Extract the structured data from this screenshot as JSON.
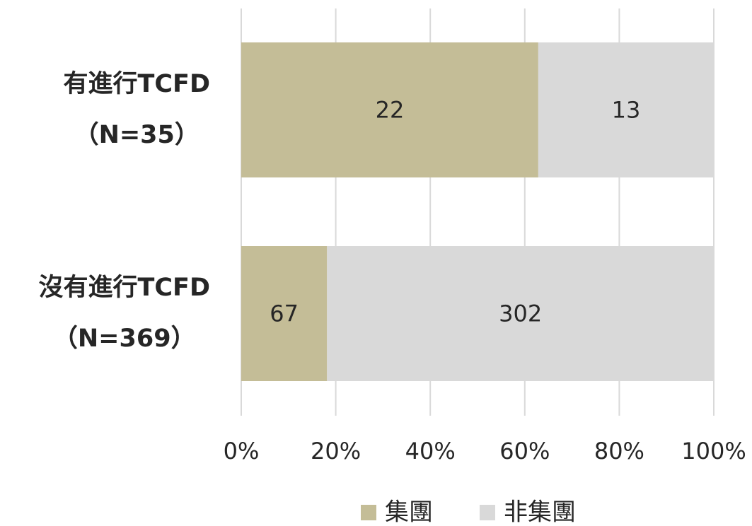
{
  "chart_data": {
    "type": "stacked_bar_100",
    "orientation": "horizontal",
    "categories": [
      [
        "有進行TCFD",
        "（N=35）"
      ],
      [
        "沒有進行TCFD",
        "（N=369）"
      ]
    ],
    "series": [
      {
        "name": "集團",
        "color": "#c4bd97",
        "values": [
          22,
          67
        ]
      },
      {
        "name": "非集團",
        "color": "#d9d9d9",
        "values": [
          13,
          302
        ]
      }
    ],
    "xlim": [
      0,
      100
    ],
    "xticks": [
      {
        "value": 0,
        "label": "0%"
      },
      {
        "value": 20,
        "label": "20%"
      },
      {
        "value": 40,
        "label": "40%"
      },
      {
        "value": 60,
        "label": "60%"
      },
      {
        "value": 80,
        "label": "80%"
      },
      {
        "value": 100,
        "label": "100%"
      }
    ],
    "grid": true,
    "legend": "bottom"
  }
}
